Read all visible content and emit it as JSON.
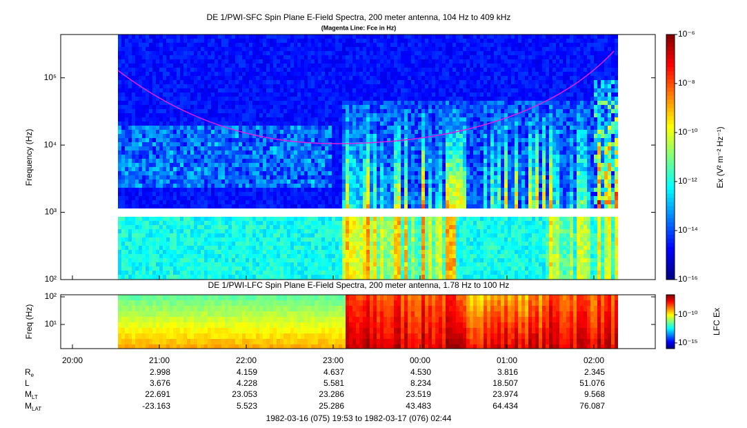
{
  "chart_data": [
    {
      "type": "spectrogram",
      "title": "DE 1/PWI-SFC  Spin Plane E-Field Spectra, 200 meter antenna, 104 Hz to 409 kHz",
      "subtitle": "(Magenta Line: Fce in Hz)",
      "y_label": "Frequency (Hz)",
      "log_y": true,
      "ylim": [
        100,
        440000
      ],
      "yticks": [
        {
          "value": 100,
          "label": "10²"
        },
        {
          "value": 1000,
          "label": "10³"
        },
        {
          "value": 10000,
          "label": "10⁴"
        },
        {
          "value": 100000,
          "label": "10⁵"
        }
      ],
      "colorbar_label": "Ex (V² m⁻² Hz⁻¹)",
      "zlim": [
        1e-16,
        1e-06
      ],
      "zticks": [
        {
          "value": 1e-06,
          "label": "10⁻⁶"
        },
        {
          "value": 1e-08,
          "label": "10⁻⁸"
        },
        {
          "value": 1e-10,
          "label": "10⁻¹⁰"
        },
        {
          "value": 1e-12,
          "label": "10⁻¹²"
        },
        {
          "value": 1e-14,
          "label": "10⁻¹⁴"
        },
        {
          "value": 1e-16,
          "label": "10⁻¹⁶"
        }
      ],
      "line_color": "#e020e0"
    },
    {
      "type": "spectrogram",
      "title": "DE 1/PWI-LFC  Spin Plane E-Field Spectra, 200 meter antenna, 1.78 Hz to 100 Hz",
      "y_label": "Freq (Hz)",
      "log_y": true,
      "ylim": [
        1.33,
        119
      ],
      "yticks": [
        {
          "value": 10,
          "label": "10¹"
        },
        {
          "value": 100,
          "label": "10²"
        }
      ],
      "colorbar_label": "LFC Ex",
      "zlim": [
        1e-16,
        3.5e-07
      ],
      "zticks": [
        {
          "value": 1e-10,
          "label": "10⁻¹⁰"
        },
        {
          "value": 1e-15,
          "label": "10⁻¹⁵"
        }
      ]
    }
  ],
  "time_axis": {
    "ticks": [
      "20:00",
      "21:00",
      "22:00",
      "23:00",
      "00:00",
      "01:00",
      "02:00"
    ]
  },
  "ephemeris": [
    {
      "name": "R",
      "sub": "e",
      "values": [
        2.998,
        4.159,
        4.637,
        4.53,
        3.816,
        2.345
      ],
      "labels": [
        "2.998",
        "4.159",
        "4.637",
        "4.530",
        "3.816",
        "2.345"
      ]
    },
    {
      "name": "L",
      "sub": "",
      "values": [
        3.676,
        4.228,
        5.581,
        8.234,
        18.507,
        51.076
      ],
      "labels": [
        "3.676",
        "4.228",
        "5.581",
        "8.234",
        "18.507",
        "51.076"
      ]
    },
    {
      "name": "M",
      "sub": "LT",
      "values": [
        22.691,
        23.053,
        23.286,
        23.519,
        23.974,
        9.568
      ],
      "labels": [
        "22.691",
        "23.053",
        "23.286",
        "23.519",
        "23.974",
        "9.568"
      ]
    },
    {
      "name": "M",
      "sub": "LAT",
      "values": [
        -23.163,
        5.523,
        25.286,
        43.483,
        64.434,
        76.087
      ],
      "labels": [
        "-23.163",
        "5.523",
        "25.286",
        "43.483",
        "64.434",
        "76.087"
      ]
    }
  ],
  "footer": "1982-03-16 (075) 19:53 to 1982-03-17 (076) 02:44"
}
